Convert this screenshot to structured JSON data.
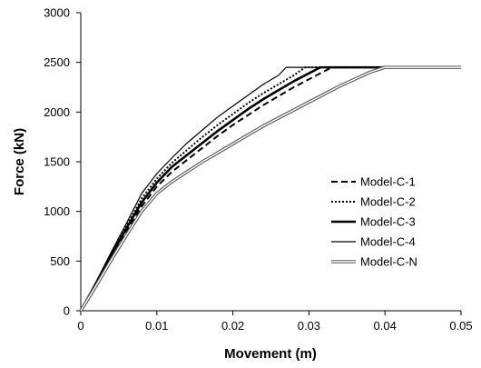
{
  "chart_data": {
    "type": "line",
    "xlabel": "Movement (m)",
    "ylabel": "Force (kN)",
    "xlim": [
      0,
      0.05
    ],
    "ylim": [
      0,
      3000
    ],
    "xticks": [
      "0",
      "0.01",
      "0.02",
      "0.03",
      "0.04",
      "0.05"
    ],
    "yticks": [
      "0",
      "500",
      "1000",
      "1500",
      "2000",
      "2500",
      "3000"
    ],
    "grid": false,
    "legend_position": "right",
    "series": [
      {
        "name": "Model-C-1",
        "style": "dashed",
        "color": "#000000",
        "x": [
          0,
          0.002,
          0.004,
          0.006,
          0.008,
          0.01,
          0.012,
          0.014,
          0.016,
          0.018,
          0.02,
          0.022,
          0.024,
          0.026,
          0.028,
          0.03,
          0.032,
          0.033,
          0.05
        ],
        "y": [
          0,
          270,
          540,
          800,
          1050,
          1250,
          1400,
          1520,
          1640,
          1760,
          1870,
          1970,
          2070,
          2160,
          2250,
          2330,
          2410,
          2450,
          2450
        ]
      },
      {
        "name": "Model-C-2",
        "style": "dotted",
        "color": "#000000",
        "x": [
          0,
          0.002,
          0.004,
          0.006,
          0.008,
          0.01,
          0.012,
          0.014,
          0.016,
          0.018,
          0.02,
          0.022,
          0.024,
          0.026,
          0.028,
          0.0295,
          0.05
        ],
        "y": [
          0,
          280,
          570,
          850,
          1130,
          1330,
          1490,
          1620,
          1750,
          1870,
          1980,
          2090,
          2190,
          2280,
          2370,
          2450,
          2450
        ]
      },
      {
        "name": "Model-C-3",
        "style": "thick",
        "color": "#000000",
        "x": [
          0,
          0.002,
          0.004,
          0.006,
          0.008,
          0.01,
          0.012,
          0.014,
          0.016,
          0.018,
          0.02,
          0.022,
          0.024,
          0.026,
          0.028,
          0.03,
          0.0315,
          0.05
        ],
        "y": [
          0,
          275,
          560,
          830,
          1090,
          1290,
          1450,
          1570,
          1690,
          1810,
          1920,
          2030,
          2130,
          2220,
          2310,
          2390,
          2450,
          2450
        ]
      },
      {
        "name": "Model-C-4",
        "style": "thin",
        "color": "#000000",
        "x": [
          0,
          0.002,
          0.004,
          0.006,
          0.008,
          0.01,
          0.012,
          0.014,
          0.016,
          0.018,
          0.02,
          0.022,
          0.024,
          0.026,
          0.027,
          0.05
        ],
        "y": [
          0,
          290,
          590,
          880,
          1180,
          1380,
          1540,
          1690,
          1820,
          1950,
          2060,
          2170,
          2280,
          2370,
          2450,
          2450
        ]
      },
      {
        "name": "Model-C-N",
        "style": "double",
        "color": "#000000",
        "x": [
          0,
          0.002,
          0.004,
          0.006,
          0.008,
          0.01,
          0.012,
          0.014,
          0.016,
          0.018,
          0.02,
          0.022,
          0.024,
          0.026,
          0.028,
          0.03,
          0.032,
          0.034,
          0.036,
          0.038,
          0.04,
          0.05
        ],
        "y": [
          0,
          250,
          510,
          760,
          1000,
          1180,
          1300,
          1400,
          1500,
          1590,
          1680,
          1770,
          1860,
          1940,
          2020,
          2100,
          2180,
          2260,
          2330,
          2400,
          2450,
          2450
        ]
      }
    ]
  }
}
